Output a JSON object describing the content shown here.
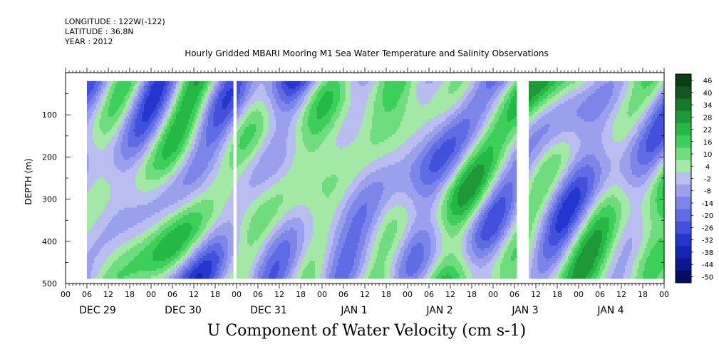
{
  "header": {
    "longitude": "LONGITUDE : 122W(-122)",
    "latitude": "LATITUDE : 36.8N",
    "year": "YEAR : 2012"
  },
  "chart_data": {
    "type": "heatmap",
    "title": "Hourly Gridded MBARI Mooring M1 Sea Water Temperature and Salinity Observations",
    "xlabel": "U Component of Water Velocity (cm s-1)",
    "ylabel": "DEPTH (m)",
    "ylim": [
      500,
      0
    ],
    "y_ticks": [
      100,
      200,
      300,
      400,
      500
    ],
    "x_hour_ticks": [
      "00",
      "06",
      "12",
      "18",
      "00",
      "06",
      "12",
      "18",
      "00",
      "06",
      "12",
      "18",
      "00",
      "06",
      "12",
      "18",
      "00",
      "06",
      "12",
      "18",
      "00",
      "06",
      "12",
      "18",
      "00",
      "06",
      "12",
      "18",
      "00"
    ],
    "x_day_labels": [
      "DEC 29",
      "DEC 30",
      "DEC 31",
      "JAN  1",
      "JAN  2",
      "JAN  3",
      "JAN  4"
    ],
    "x_range_hours": [
      0,
      168
    ],
    "data_depth_range_m": [
      20,
      485
    ],
    "data_gaps_hours": [
      [
        0,
        6
      ],
      [
        47,
        48
      ],
      [
        126.5,
        130
      ]
    ],
    "colorbar": {
      "levels": [
        "46",
        "40",
        "34",
        "28",
        "22",
        "16",
        "10",
        "4",
        "-2",
        "-8",
        "-14",
        "-20",
        "-26",
        "-32",
        "-38",
        "-44",
        "-50"
      ],
      "colors": [
        "#0b3d14",
        "#11561e",
        "#167a2a",
        "#1d9a37",
        "#25b845",
        "#3ccf5a",
        "#6fdc7e",
        "#a3e8a5",
        "#b9bdf0",
        "#9aa0ec",
        "#7d86e8",
        "#5f6ce3",
        "#4250dc",
        "#2536cf",
        "#1624b3",
        "#0c1890",
        "#050c66"
      ]
    }
  }
}
